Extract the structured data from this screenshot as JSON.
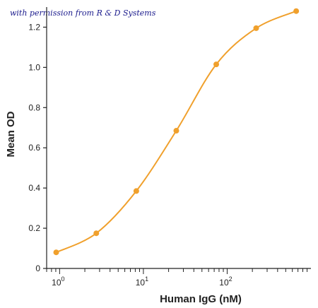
{
  "note": "with permission from R & D Systems",
  "chart_data": {
    "type": "line",
    "xlabel": "Human IgG (nM)",
    "ylabel": "Mean OD",
    "xscale": "log",
    "xlim": [
      0.7,
      1000
    ],
    "ylim": [
      0,
      1.3
    ],
    "xticks": [
      {
        "value": 1,
        "base": "10",
        "exp": "0"
      },
      {
        "value": 10,
        "base": "10",
        "exp": "1"
      },
      {
        "value": 100,
        "base": "10",
        "exp": "2"
      }
    ],
    "yticks": [
      {
        "value": 0,
        "label": "0"
      },
      {
        "value": 0.2,
        "label": "0.2"
      },
      {
        "value": 0.4,
        "label": "0.4"
      },
      {
        "value": 0.6,
        "label": "0.6"
      },
      {
        "value": 0.8,
        "label": "0.8"
      },
      {
        "value": 1.0,
        "label": "1.0"
      },
      {
        "value": 1.2,
        "label": "1.2"
      }
    ],
    "series": [
      {
        "color": "#f0a02c",
        "points": [
          {
            "x": 0.91,
            "y": 0.08
          },
          {
            "x": 2.74,
            "y": 0.175
          },
          {
            "x": 8.23,
            "y": 0.385
          },
          {
            "x": 24.7,
            "y": 0.685
          },
          {
            "x": 74.1,
            "y": 1.015
          },
          {
            "x": 222,
            "y": 1.195
          },
          {
            "x": 667,
            "y": 1.28
          }
        ]
      }
    ]
  }
}
